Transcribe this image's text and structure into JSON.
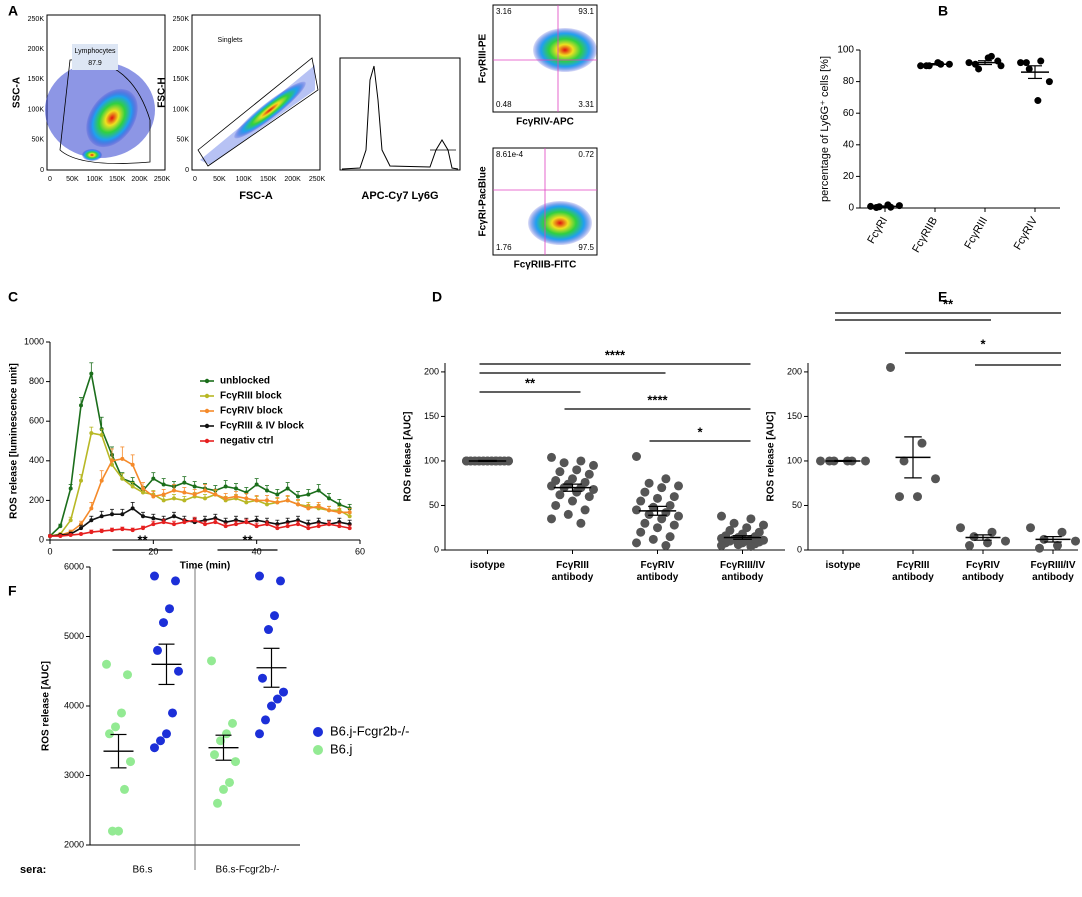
{
  "panel_labels": [
    "A",
    "B",
    "C",
    "D",
    "E",
    "F"
  ],
  "flow": {
    "scatter_plots": [
      {
        "ylabel": "SSC-A",
        "gate": "Lymphocytes",
        "gate_value": "87.9",
        "xticks": [
          "0",
          "50K",
          "100K",
          "150K",
          "200K",
          "250K"
        ],
        "yticks": [
          "0",
          "50K",
          "100K",
          "150K",
          "200K",
          "250K"
        ]
      },
      {
        "ylabel": "FSC-H",
        "xlabel": "FSC-A",
        "gate": "Singlets",
        "xticks": [
          "0",
          "50K",
          "100K",
          "150K",
          "200K",
          "250K"
        ],
        "yticks": [
          "0",
          "50K",
          "100K",
          "150K",
          "200K",
          "250K"
        ]
      }
    ],
    "histogram": {
      "xlabel": "APC-Cy7 Ly6G"
    },
    "quadrant_plots": [
      {
        "ylabel": "FcγRIII-PE",
        "xlabel": "FcγRIV-APC",
        "quadrants": [
          "3.16",
          "93.1",
          "0.48",
          "3.31"
        ]
      },
      {
        "ylabel": "FcγRI-PacBlue",
        "xlabel": "FcγRIIB-FITC",
        "quadrants": [
          "8.61e-4",
          "0.72",
          "1.76",
          "97.5"
        ]
      }
    ]
  },
  "chart_data": [
    {
      "type": "dotplot",
      "ylabel": "percentage of Ly6G⁺ cells [%]",
      "categories": [
        "FcγRI",
        "FcγRIIB",
        "FcγRIII",
        "FcγRIV"
      ],
      "points": [
        [
          1,
          0.5,
          0.8,
          1.5,
          2,
          0.3
        ],
        [
          90,
          91,
          90,
          91,
          92,
          90
        ],
        [
          92,
          96,
          88,
          90,
          95,
          91,
          93
        ],
        [
          92,
          93,
          88,
          80,
          68,
          92
        ]
      ],
      "means": [
        1,
        91,
        92,
        86
      ],
      "errors": [
        0.3,
        0.4,
        1.2,
        4
      ],
      "color": "#000000",
      "ylim": [
        0,
        100
      ],
      "yticks": [
        0,
        20,
        40,
        60,
        80,
        100
      ]
    },
    {
      "type": "line",
      "ylabel": "ROS release [luminescence unit]",
      "xlabel": "Time (min)",
      "xlim": [
        0,
        60
      ],
      "xticks": [
        0,
        20,
        40,
        60
      ],
      "ylim": [
        0,
        1000
      ],
      "yticks": [
        0,
        200,
        400,
        600,
        800,
        1000
      ],
      "x": [
        0,
        2,
        4,
        6,
        8,
        10,
        12,
        14,
        16,
        18,
        20,
        22,
        24,
        26,
        28,
        30,
        32,
        34,
        36,
        38,
        40,
        42,
        44,
        46,
        48,
        50,
        52,
        54,
        56,
        58
      ],
      "series": [
        {
          "name": "unblocked",
          "color": "#1b6e1b",
          "values": [
            20,
            70,
            260,
            680,
            840,
            560,
            430,
            310,
            290,
            250,
            310,
            280,
            270,
            290,
            270,
            260,
            250,
            270,
            260,
            240,
            280,
            250,
            230,
            260,
            220,
            230,
            250,
            210,
            180,
            160
          ],
          "errors": [
            5,
            10,
            20,
            40,
            55,
            60,
            40,
            30,
            25,
            20,
            30,
            30,
            25,
            30,
            25,
            25,
            25,
            30,
            25,
            25,
            30,
            25,
            25,
            30,
            25,
            25,
            30,
            25,
            25,
            20
          ]
        },
        {
          "name": "FcγRIII block",
          "color": "#b8b825",
          "values": [
            20,
            30,
            100,
            300,
            540,
            530,
            380,
            310,
            270,
            240,
            230,
            200,
            210,
            200,
            220,
            210,
            230,
            200,
            210,
            190,
            200,
            180,
            190,
            200,
            180,
            170,
            160,
            150,
            150,
            120
          ],
          "errors": [
            5,
            5,
            15,
            30,
            30,
            30,
            30,
            25,
            20,
            20,
            20,
            20,
            20,
            20,
            20,
            20,
            20,
            20,
            20,
            20,
            20,
            20,
            20,
            20,
            20,
            20,
            20,
            20,
            20,
            15
          ]
        },
        {
          "name": "FcγRIV block",
          "color": "#f58a2a",
          "values": [
            20,
            25,
            40,
            80,
            160,
            300,
            400,
            410,
            380,
            260,
            220,
            230,
            250,
            240,
            230,
            250,
            230,
            210,
            220,
            210,
            200,
            200,
            190,
            200,
            180,
            160,
            170,
            150,
            140,
            140
          ],
          "errors": [
            5,
            5,
            10,
            15,
            30,
            50,
            60,
            60,
            50,
            30,
            25,
            25,
            30,
            25,
            25,
            30,
            25,
            25,
            25,
            25,
            25,
            25,
            25,
            25,
            25,
            20,
            20,
            20,
            20,
            20
          ]
        },
        {
          "name": "FcγRIII & IV block",
          "color": "#111111",
          "values": [
            20,
            25,
            30,
            60,
            100,
            120,
            130,
            130,
            160,
            120,
            110,
            100,
            120,
            100,
            90,
            100,
            110,
            90,
            100,
            90,
            100,
            90,
            80,
            90,
            100,
            80,
            90,
            80,
            90,
            80
          ],
          "errors": [
            5,
            5,
            10,
            15,
            20,
            25,
            25,
            25,
            30,
            20,
            20,
            20,
            20,
            20,
            20,
            20,
            20,
            20,
            20,
            20,
            20,
            20,
            20,
            20,
            20,
            20,
            20,
            20,
            20,
            20
          ]
        },
        {
          "name": "negativ ctrl",
          "color": "#e62020",
          "values": [
            20,
            20,
            25,
            30,
            40,
            45,
            50,
            55,
            50,
            60,
            80,
            90,
            80,
            90,
            100,
            80,
            90,
            70,
            80,
            90,
            70,
            80,
            60,
            70,
            80,
            60,
            70,
            80,
            70,
            60
          ],
          "errors": [
            3,
            3,
            5,
            5,
            10,
            10,
            10,
            10,
            10,
            10,
            15,
            15,
            15,
            15,
            15,
            15,
            15,
            15,
            15,
            15,
            15,
            15,
            15,
            15,
            15,
            15,
            15,
            15,
            15,
            15
          ]
        }
      ]
    },
    {
      "type": "dotplot",
      "ylabel": "ROS release [AUC]",
      "categories": [
        "isotype",
        "FcγRIII antibody",
        "FcγRIV antibody",
        "FcγRIII/IV antibody"
      ],
      "points": [
        [
          100,
          100,
          100,
          100,
          100,
          100,
          100,
          100,
          100,
          100,
          100,
          100,
          100,
          100,
          100,
          100,
          100,
          100,
          100,
          100,
          100,
          100,
          100,
          100
        ],
        [
          104,
          100,
          98,
          95,
          90,
          88,
          85,
          80,
          78,
          76,
          74,
          72,
          70,
          70,
          68,
          65,
          62,
          60,
          55,
          50,
          45,
          40,
          35,
          30
        ],
        [
          105,
          80,
          75,
          72,
          70,
          65,
          60,
          58,
          55,
          50,
          48,
          45,
          42,
          40,
          38,
          35,
          30,
          28,
          25,
          20,
          15,
          12,
          8,
          5
        ],
        [
          38,
          35,
          30,
          28,
          25,
          22,
          20,
          18,
          16,
          15,
          14,
          13,
          12,
          12,
          11,
          10,
          10,
          9,
          8,
          8,
          7,
          6,
          5,
          4
        ]
      ],
      "means": [
        100,
        70,
        44,
        14
      ],
      "errors": [
        0.5,
        4,
        5,
        2
      ],
      "color": "#555555",
      "ylim": [
        0,
        210
      ],
      "yticks": [
        0,
        50,
        100,
        150,
        200
      ],
      "brackets": [
        {
          "from": 2,
          "to": 3,
          "label": "*"
        },
        {
          "from": 1,
          "to": 3,
          "label": "****"
        },
        {
          "from": 0,
          "to": 1,
          "label": "**"
        },
        {
          "from": 0,
          "to": 2
        },
        {
          "from": 0,
          "to": 3,
          "label": "****"
        }
      ]
    },
    {
      "type": "dotplot",
      "ylabel": "ROS release [AUC]",
      "categories": [
        "isotype",
        "FcγRIII antibody",
        "FcγRIV antibody",
        "FcγRIII/IV antibody"
      ],
      "points": [
        [
          100,
          100,
          100,
          100,
          100,
          100
        ],
        [
          205,
          120,
          100,
          80,
          60,
          60
        ],
        [
          25,
          20,
          15,
          10,
          8,
          5
        ],
        [
          25,
          20,
          12,
          10,
          5,
          2
        ]
      ],
      "means": [
        100,
        104,
        14,
        12
      ],
      "errors": [
        0.5,
        23,
        3,
        3
      ],
      "color": "#555555",
      "ylim": [
        0,
        210
      ],
      "yticks": [
        0,
        50,
        100,
        150,
        200
      ],
      "brackets": [
        {
          "from": 2,
          "to": 3
        },
        {
          "from": 1,
          "to": 3,
          "label": "*"
        },
        {
          "from": 0,
          "to": 2
        },
        {
          "from": 0,
          "to": 3,
          "label": "**"
        }
      ]
    },
    {
      "type": "grouped_dotplot",
      "ylabel": "ROS release [AUC]",
      "group_label": "sera:",
      "groups": [
        "B6.s",
        "B6.s-Fcgr2b-/-"
      ],
      "ylim": [
        2000,
        6000
      ],
      "yticks": [
        2000,
        3000,
        4000,
        5000,
        6000
      ],
      "series": [
        {
          "name": "B6.j-Fcgr2b-/-",
          "color": "#1c2fd8",
          "points": [
            [
              5870,
              5800,
              5400,
              5200,
              4800,
              4500,
              3900,
              3600,
              3500,
              3400
            ],
            [
              5870,
              5800,
              5300,
              5100,
              4400,
              4200,
              4100,
              4000,
              3800,
              3600
            ]
          ],
          "means": [
            4600,
            4550
          ],
          "errors": [
            290,
            280
          ]
        },
        {
          "name": "B6.j",
          "color": "#93ea93",
          "points": [
            [
              4600,
              4450,
              3900,
              3700,
              3600,
              3200,
              2800,
              2200,
              2200
            ],
            [
              4650,
              3750,
              3600,
              3500,
              3300,
              3200,
              2900,
              2800,
              2600
            ]
          ],
          "means": [
            3350,
            3400
          ],
          "errors": [
            240,
            180
          ]
        }
      ],
      "brackets": [
        {
          "group": 0,
          "label": "**"
        },
        {
          "group": 1,
          "label": "**"
        }
      ]
    }
  ]
}
